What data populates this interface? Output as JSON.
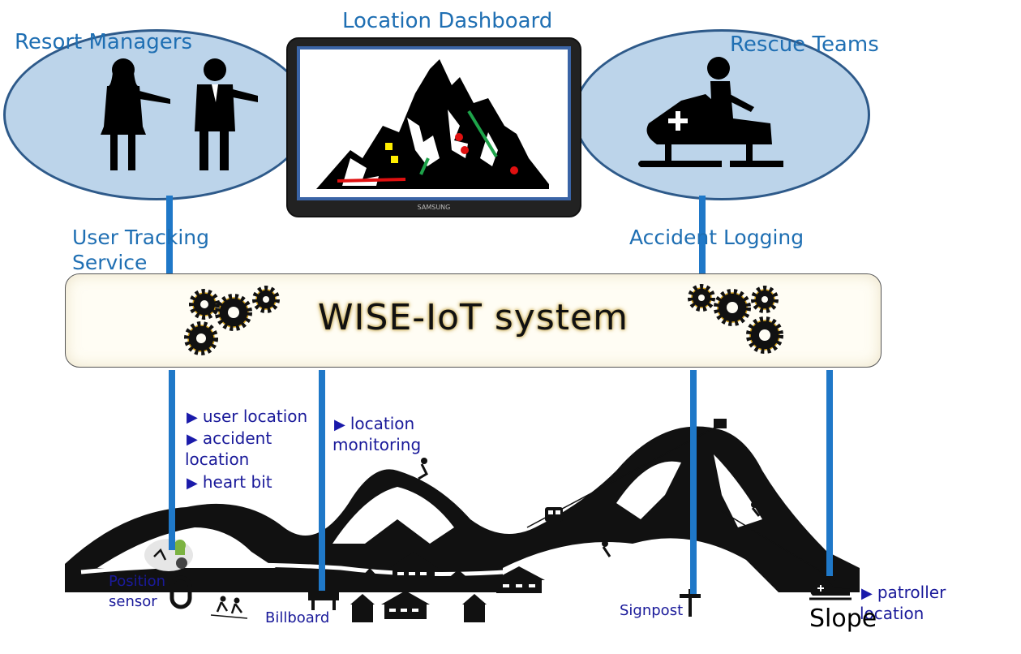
{
  "stakeholders": {
    "managers": "Resort Managers",
    "dashboard": "Location Dashboard",
    "rescue": "Rescue Teams"
  },
  "services": {
    "tracking_line1": "User Tracking",
    "tracking_line2": "Service",
    "accident_logging": "Accident Logging"
  },
  "system": {
    "title": "WISE-IoT system"
  },
  "device_brand": "SAMSUNG",
  "flows": {
    "sensor": [
      "user location",
      "accident",
      "location",
      "heart bit"
    ],
    "billboard_line1": "location",
    "billboard_line2": "monitoring",
    "patroller_line1": "patroller",
    "patroller_line2": "location"
  },
  "devices": {
    "position_line1": "Position",
    "position_line2": "sensor",
    "billboard": "Billboard",
    "signpost": "Signpost",
    "slope": "Slope"
  },
  "colors": {
    "connector": "#1f78c8",
    "ellipse_fill": "#bcd4ea",
    "accent_text": "#1f6fb3",
    "flow_text": "#1a1a9a"
  }
}
